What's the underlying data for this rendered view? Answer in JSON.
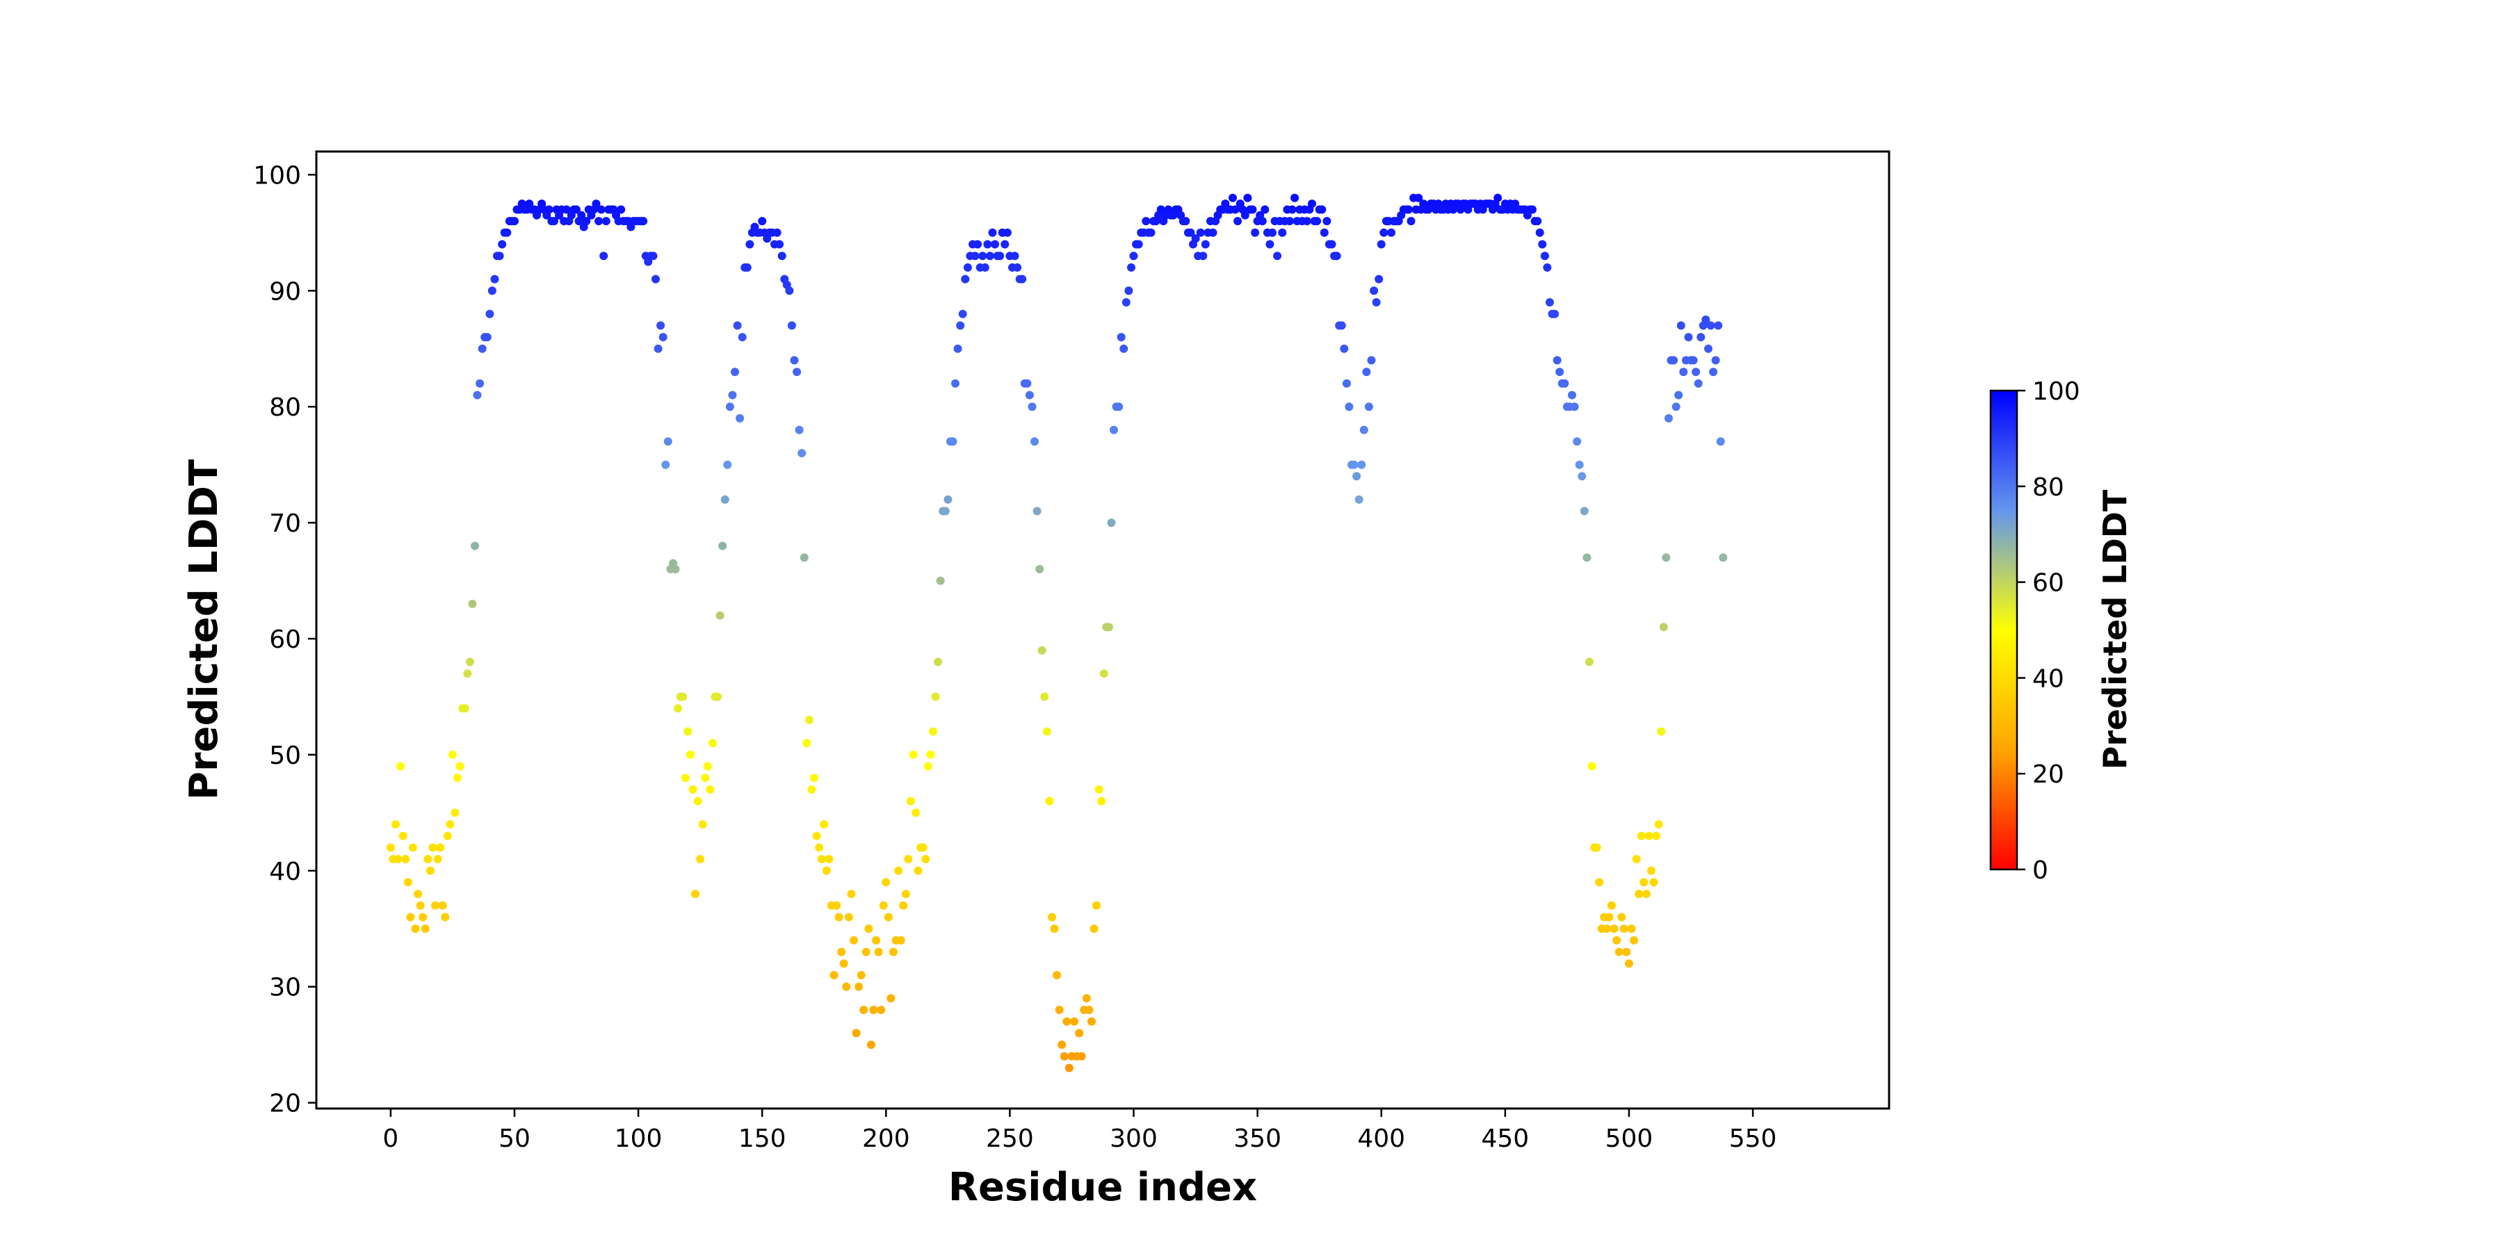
{
  "chart_data": {
    "type": "scatter",
    "xlabel": "Residue index",
    "ylabel": "Predicted LDDT",
    "xlim": [
      -30,
      605
    ],
    "ylim": [
      19.5,
      102
    ],
    "x_ticks": [
      0,
      50,
      100,
      150,
      200,
      250,
      300,
      350,
      400,
      450,
      500,
      550
    ],
    "y_ticks": [
      20,
      30,
      40,
      50,
      60,
      70,
      80,
      90,
      100
    ],
    "grid": false,
    "colorbar": {
      "label": "Predicted LDDT",
      "range": [
        0,
        100
      ],
      "ticks": [
        0,
        20,
        40,
        60,
        80,
        100
      ],
      "colors": [
        "#ff0000",
        "#ffa500",
        "#ffff00",
        "#6495ed",
        "#0000ff"
      ]
    },
    "series": [
      {
        "y": [
          42,
          41,
          44,
          41,
          49,
          43,
          41,
          39,
          36,
          42,
          35,
          38,
          37,
          36,
          35,
          41,
          40,
          42,
          37,
          41,
          42,
          37,
          36,
          43,
          44,
          50,
          45,
          48,
          49,
          54,
          54,
          57,
          58,
          63,
          68,
          81,
          82,
          85,
          86,
          86,
          88,
          90,
          91,
          93,
          93,
          94,
          95,
          95,
          96,
          96,
          96,
          97,
          97,
          97.5,
          97,
          97,
          97.5,
          97,
          97,
          96.5,
          97,
          97.5,
          97,
          96.5,
          97,
          96,
          96,
          97,
          96.5,
          97,
          96,
          97,
          96,
          96.5,
          97,
          97,
          96,
          96.5,
          95.5,
          96,
          97,
          96.5,
          97,
          97.5,
          96,
          97,
          93,
          96,
          97,
          97,
          97,
          96.5,
          96,
          97,
          96,
          96,
          96,
          95.5,
          96,
          96,
          96,
          96,
          96,
          93,
          92.5,
          93,
          93,
          91,
          85,
          87,
          86,
          75,
          77,
          66,
          66.5,
          66,
          54,
          55,
          55,
          48,
          52,
          50,
          47,
          38,
          46,
          41,
          44,
          48,
          49,
          47,
          51,
          55,
          55,
          62,
          68,
          72,
          75,
          80,
          81,
          83,
          87,
          79,
          86,
          92,
          92,
          94,
          95,
          95.5,
          95,
          95,
          96,
          95,
          94.5,
          95,
          95,
          94,
          95,
          94,
          93,
          91,
          90.5,
          90,
          87,
          84,
          83,
          78,
          76,
          67,
          51,
          53,
          47,
          48,
          43,
          42,
          41,
          44,
          40,
          41,
          37,
          31,
          37,
          36,
          33,
          32,
          30,
          36,
          38,
          34,
          26,
          30,
          31,
          28,
          33,
          35,
          25,
          28,
          34,
          33,
          28,
          37,
          39,
          36,
          29,
          33,
          34,
          40,
          34,
          37,
          38,
          41,
          46,
          50,
          45,
          40,
          42,
          42,
          41,
          49,
          50,
          52,
          55,
          58,
          65,
          71,
          71,
          72,
          77,
          77,
          82,
          85,
          87,
          88,
          91,
          92,
          93,
          94,
          93,
          94,
          92,
          93,
          92,
          94,
          93,
          95,
          94,
          93,
          93,
          95,
          94,
          95,
          93,
          92,
          93,
          92,
          91,
          91,
          82,
          82,
          81,
          80,
          77,
          71,
          66,
          59,
          55,
          52,
          46,
          36,
          35,
          31,
          28,
          25,
          24,
          27,
          23,
          24,
          27,
          24,
          26,
          24,
          28,
          29,
          28,
          27,
          35,
          37,
          47,
          46,
          57,
          61,
          61,
          70,
          78,
          80,
          80,
          86,
          85,
          89,
          90,
          92,
          93,
          94,
          94,
          95,
          95,
          96,
          95,
          95,
          96,
          96,
          96.5,
          97,
          96,
          96.5,
          97,
          96.5,
          96.5,
          97,
          97,
          96.5,
          96,
          96,
          95,
          95,
          94,
          94.5,
          93,
          95,
          93,
          94,
          95,
          96,
          95,
          96,
          96.5,
          97,
          97,
          97.5,
          97,
          97,
          98,
          97,
          96,
          97.5,
          97,
          96.5,
          98,
          97,
          97,
          95,
          96,
          96.5,
          96,
          97,
          95,
          94,
          95,
          96,
          93,
          96,
          95,
          96,
          97,
          96,
          97,
          98,
          96,
          97,
          96,
          97,
          96,
          97,
          97.5,
          96,
          96,
          97,
          97,
          95,
          96,
          94,
          94,
          93,
          93,
          87,
          87,
          85,
          82,
          80,
          75,
          75,
          74,
          72,
          75,
          78,
          83,
          80,
          84,
          90,
          89,
          91,
          94,
          95,
          96,
          96,
          95,
          96,
          96,
          96,
          96.5,
          97,
          97,
          97,
          96,
          98,
          97,
          98,
          97,
          97.5,
          97,
          97,
          97.5,
          97.5,
          97,
          97.5,
          97,
          97,
          97.5,
          97,
          97.5,
          97,
          97.5,
          97.5,
          97,
          97.5,
          97.5,
          97,
          97.5,
          97.5,
          97.5,
          97,
          97.5,
          97,
          97.5,
          97.5,
          97.5,
          97,
          97.5,
          98,
          97,
          97,
          97.5,
          97,
          97.5,
          97,
          97.5,
          97,
          97,
          97,
          97,
          96.5,
          97,
          97,
          96,
          96,
          95,
          94,
          93,
          92,
          89,
          88,
          88,
          84,
          83,
          82,
          82,
          80,
          80,
          81,
          80,
          77,
          75,
          74,
          71,
          67,
          58,
          49,
          42,
          42,
          39,
          35,
          36,
          35,
          36,
          37,
          35,
          34,
          33,
          36,
          35,
          33,
          32,
          35,
          34,
          41,
          38,
          43,
          39,
          38,
          43,
          40,
          39,
          43,
          44,
          52,
          61,
          67,
          79,
          84,
          84,
          80,
          81,
          87,
          83,
          84,
          86,
          84,
          84,
          83,
          82,
          86,
          87,
          87.5,
          85,
          87,
          83,
          84,
          87,
          77,
          67
        ]
      }
    ]
  }
}
